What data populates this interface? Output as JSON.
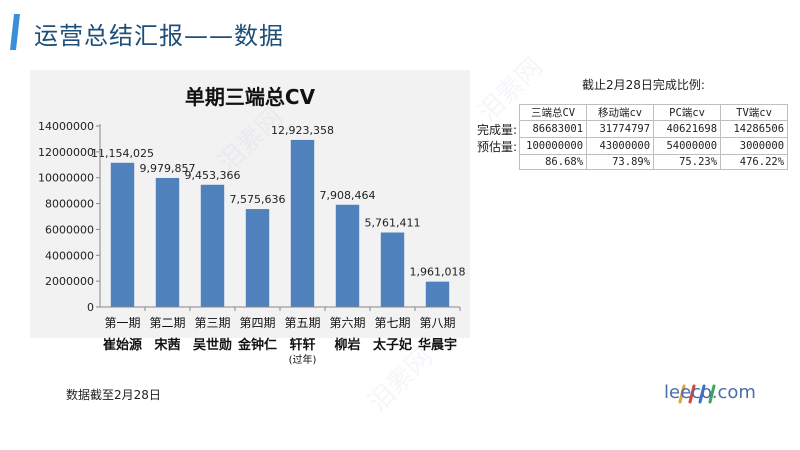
{
  "page": {
    "title": "运营总结汇报——数据",
    "footnote": "数据截至2月28日",
    "brand": "leeco.com",
    "watermark": "泪素网",
    "accent": "#3a8fd8"
  },
  "table": {
    "caption": "截止2月28日完成比例:",
    "headers": [
      "三端总CV",
      "移动端cv",
      "PC端cv",
      "TV端cv"
    ],
    "rows": [
      {
        "label": "完成量:",
        "values": [
          "86683001",
          "31774797",
          "40621698",
          "14286506"
        ]
      },
      {
        "label": "预估量:",
        "values": [
          "100000000",
          "43000000",
          "54000000",
          "3000000"
        ]
      },
      {
        "label": "",
        "values": [
          "86.68%",
          "73.89%",
          "75.23%",
          "476.22%"
        ]
      }
    ]
  },
  "chart_data": {
    "type": "bar",
    "title": "单期三端总CV",
    "categories": [
      "第一期",
      "第二期",
      "第三期",
      "第四期",
      "第五期",
      "第六期",
      "第七期",
      "第八期"
    ],
    "hosts": [
      "崔始源",
      "宋茜",
      "吴世勋",
      "金钟仁",
      "轩轩",
      "柳岩",
      "太子妃",
      "华晨宇"
    ],
    "host_notes": [
      "",
      "",
      "",
      "",
      "(过年)",
      "",
      "",
      ""
    ],
    "values": [
      11154025,
      9979857,
      9453366,
      7575636,
      12923358,
      7908464,
      5761411,
      1961018
    ],
    "value_labels": [
      "11,154,025",
      "9,979,857",
      "9,453,366",
      "7,575,636",
      "12,923,358",
      "7,908,464",
      "5,761,411",
      "1,961,018"
    ],
    "ylim": [
      0,
      14000000
    ],
    "ytick_labels": [
      "0",
      "2000000",
      "4000000",
      "6000000",
      "8000000",
      "10000000",
      "12000000",
      "14000000"
    ],
    "bar_color": "#4f81bd",
    "grid": false,
    "legend": "none"
  }
}
